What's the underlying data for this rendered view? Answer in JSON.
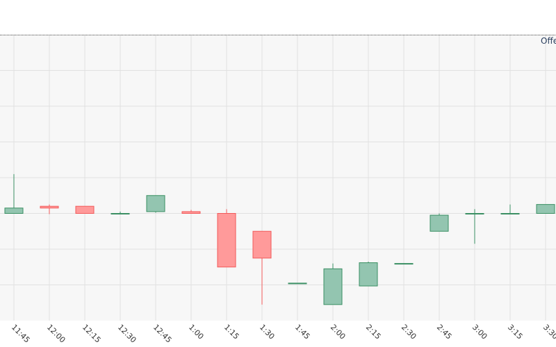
{
  "colors": {
    "up_fill": "#93c5b0",
    "up_stroke": "#3a8f63",
    "down_fill": "#ff9a9a",
    "down_stroke": "#f25a5a",
    "plot_bg": "#f7f7f7",
    "grid": "#e1e1e1",
    "annotation_text": "#2a3f5f",
    "top_line": "#444444"
  },
  "annotation": {
    "text": "Offe"
  },
  "chart_data": {
    "type": "candlestick",
    "title": "",
    "xlabel": "",
    "ylabel": "",
    "y_ticks_shown": false,
    "grid": true,
    "ylim": [
      0,
      8
    ],
    "categories": [
      "11:45",
      "12:00",
      "12:15",
      "12:30",
      "12:45",
      "1:00",
      "1:15",
      "1:30",
      "1:45",
      "2:00",
      "2:15",
      "2:30",
      "2:45",
      "3:00",
      "3:15",
      "3:30"
    ],
    "open": [
      3.0,
      3.2,
      3.2,
      3.0,
      3.05,
      3.05,
      3.0,
      2.5,
      1.05,
      0.45,
      0.97,
      1.6,
      2.5,
      3.0,
      3.0,
      3.0
    ],
    "high": [
      4.1,
      3.25,
      3.2,
      3.05,
      3.5,
      3.1,
      3.12,
      2.5,
      1.05,
      1.6,
      1.65,
      1.6,
      3.0,
      3.12,
      3.25,
      3.25
    ],
    "low": [
      3.0,
      2.98,
      3.0,
      2.98,
      3.02,
      3.0,
      1.5,
      0.45,
      1.03,
      0.45,
      0.97,
      1.6,
      2.5,
      2.15,
      3.0,
      3.0
    ],
    "close": [
      3.15,
      3.15,
      3.0,
      3.0,
      3.5,
      3.0,
      1.5,
      1.75,
      1.05,
      1.45,
      1.62,
      1.6,
      2.95,
      3.0,
      3.0,
      3.25
    ]
  }
}
